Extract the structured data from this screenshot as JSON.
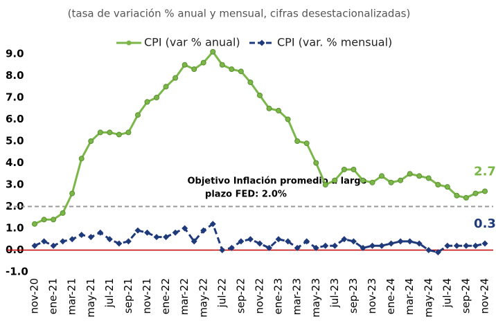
{
  "chart_data": {
    "type": "line",
    "subtitle": "(tasa de variación % anual y mensual, cifras desestacionalizadas)",
    "categories": [
      "nov-20",
      null,
      "ene-21",
      null,
      "mar-21",
      null,
      "may-21",
      null,
      "jul-21",
      null,
      "sep-21",
      null,
      "nov-21",
      null,
      "ene-22",
      null,
      "mar-22",
      null,
      "may-22",
      null,
      "jul-22",
      null,
      "sep-22",
      null,
      "nov-22",
      null,
      "ene-23",
      null,
      "mar-23",
      null,
      "may-23",
      null,
      "jul-23",
      null,
      "sep-23",
      null,
      "nov-23",
      null,
      "ene-24",
      null,
      "mar-24",
      null,
      "may-24",
      null,
      "jul-24",
      null,
      "sep-24",
      null,
      "nov-24"
    ],
    "series": [
      {
        "name": "CPI (var % anual)",
        "color": "#7ab648",
        "marker": "circle",
        "dashed": false,
        "values": [
          1.2,
          1.4,
          1.4,
          1.7,
          2.6,
          4.2,
          5.0,
          5.4,
          5.4,
          5.3,
          5.4,
          6.2,
          6.8,
          7.0,
          7.5,
          7.9,
          8.5,
          8.3,
          8.6,
          9.1,
          8.5,
          8.3,
          8.2,
          7.7,
          7.1,
          6.5,
          6.4,
          6.0,
          5.0,
          4.9,
          4.0,
          3.0,
          3.2,
          3.7,
          3.7,
          3.2,
          3.1,
          3.4,
          3.1,
          3.2,
          3.5,
          3.4,
          3.3,
          3.0,
          2.9,
          2.5,
          2.4,
          2.6,
          2.7
        ]
      },
      {
        "name": "CPI (var. % mensual)",
        "color": "#1f3a7a",
        "marker": "diamond",
        "dashed": true,
        "values": [
          0.2,
          0.4,
          0.2,
          0.4,
          0.5,
          0.7,
          0.6,
          0.8,
          0.5,
          0.3,
          0.4,
          0.9,
          0.8,
          0.6,
          0.6,
          0.8,
          1.0,
          0.4,
          0.9,
          1.2,
          0.0,
          0.1,
          0.4,
          0.5,
          0.3,
          0.1,
          0.5,
          0.4,
          0.1,
          0.4,
          0.1,
          0.2,
          0.2,
          0.5,
          0.4,
          0.1,
          0.2,
          0.2,
          0.3,
          0.4,
          0.4,
          0.3,
          0.0,
          -0.1,
          0.2,
          0.2,
          0.2,
          0.2,
          0.3
        ]
      }
    ],
    "ylim": [
      -1,
      9
    ],
    "yticks": [
      {
        "value": -1,
        "label": "-1.0"
      },
      {
        "value": 0,
        "label": "0.0"
      },
      {
        "value": 1,
        "label": "1.0"
      },
      {
        "value": 2,
        "label": "2.0"
      },
      {
        "value": 3,
        "label": "3.0"
      },
      {
        "value": 4,
        "label": "4.0"
      },
      {
        "value": 5,
        "label": "5.0"
      },
      {
        "value": 6,
        "label": "6.0"
      },
      {
        "value": 7,
        "label": "7.0"
      },
      {
        "value": 8,
        "label": "8.0"
      },
      {
        "value": 9,
        "label": "9.0"
      }
    ],
    "reference_line": {
      "value": 2,
      "color": "#999999"
    },
    "zero_line_color": "#c00000",
    "annotation": [
      "Objetivo Inflación promedio a largo",
      "plazo FED: 2.0%"
    ],
    "legend": "top"
  }
}
